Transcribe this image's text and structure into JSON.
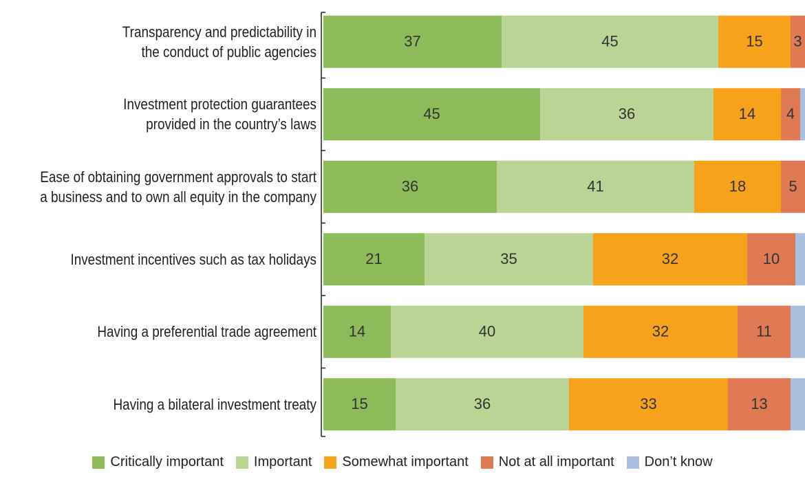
{
  "chart_data": {
    "type": "stacked-barh",
    "categories": [
      "Transparency and predictability in\nthe conduct of public agencies",
      "Investment protection guarantees\nprovided in the country’s laws",
      "Ease of obtaining government approvals to start\na business and to own all equity in the company",
      "Investment incentives such as tax holidays",
      "Having a preferential trade agreement",
      "Having a bilateral investment treaty"
    ],
    "series": [
      {
        "name": "Critically important",
        "color": "#8dbb5a",
        "values": [
          37,
          45,
          36,
          21,
          14,
          15
        ]
      },
      {
        "name": "Important",
        "color": "#b9d494",
        "values": [
          45,
          36,
          41,
          35,
          40,
          36
        ]
      },
      {
        "name": "Somewhat important",
        "color": "#f7a21b",
        "values": [
          15,
          14,
          18,
          32,
          32,
          33
        ]
      },
      {
        "name": "Not at all important",
        "color": "#e07a55",
        "values": [
          3,
          4,
          5,
          10,
          11,
          13
        ]
      },
      {
        "name": "Don’t know",
        "color": "#aac0de",
        "values": [
          1,
          1,
          1,
          2,
          3,
          3
        ],
        "value_labels": [
          null,
          null,
          null,
          null,
          null,
          null
        ]
      }
    ],
    "xlim": [
      0,
      100
    ]
  }
}
